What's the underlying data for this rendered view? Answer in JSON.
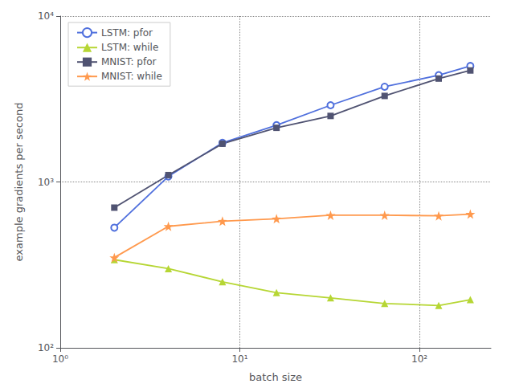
{
  "chart_data": {
    "type": "line",
    "xlabel": "batch size",
    "ylabel": "example gradients per second",
    "log": true,
    "xlim": [
      1,
      250
    ],
    "ylim": [
      100,
      10000
    ],
    "xticks": [
      {
        "value": 1,
        "label": "10⁰"
      },
      {
        "value": 10,
        "label": "10¹"
      },
      {
        "value": 100,
        "label": "10²"
      }
    ],
    "yticks": [
      {
        "value": 100,
        "label": "10²"
      },
      {
        "value": 1000,
        "label": "10³"
      },
      {
        "value": 10000,
        "label": "10⁴"
      }
    ],
    "grid": true,
    "legend": "upper left",
    "x": [
      2,
      4,
      8,
      16,
      32,
      64,
      128,
      192
    ],
    "series": [
      {
        "name": "LSTM: pfor",
        "marker": "circle",
        "values": [
          530,
          1080,
          1720,
          2200,
          2900,
          3750,
          4400,
          5000
        ]
      },
      {
        "name": "LSTM: while",
        "marker": "triangle",
        "values": [
          340,
          300,
          250,
          215,
          200,
          185,
          180,
          195
        ]
      },
      {
        "name": "MNIST: pfor",
        "marker": "square",
        "values": [
          700,
          1100,
          1700,
          2120,
          2500,
          3300,
          4200,
          4700
        ]
      },
      {
        "name": "MNIST: while",
        "marker": "star",
        "values": [
          350,
          540,
          580,
          600,
          630,
          630,
          625,
          640
        ]
      }
    ]
  }
}
